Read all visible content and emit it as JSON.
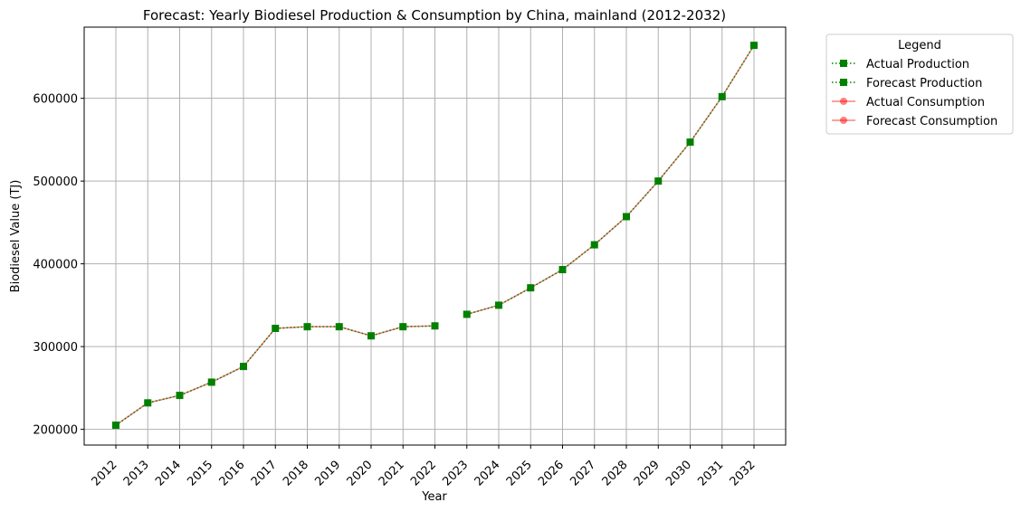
{
  "chart_data": {
    "type": "line",
    "title": "Forecast: Yearly Biodiesel Production & Consumption by China, mainland (2012-2032)",
    "xlabel": "Year",
    "ylabel": "Biodiesel Value (TJ)",
    "categories": [
      "2012",
      "2013",
      "2014",
      "2015",
      "2016",
      "2017",
      "2018",
      "2019",
      "2020",
      "2021",
      "2022",
      "2023",
      "2024",
      "2025",
      "2026",
      "2027",
      "2028",
      "2029",
      "2030",
      "2031",
      "2032"
    ],
    "ylim": [
      181000,
      686000
    ],
    "yticks": [
      200000,
      300000,
      400000,
      500000,
      600000
    ],
    "grid": true,
    "legend": {
      "title": "Legend",
      "placement": "outside-top-right"
    },
    "series": [
      {
        "name": "Actual Production",
        "color": "#008000",
        "marker": "square",
        "linestyle": "dotted",
        "x": [
          "2012",
          "2013",
          "2014",
          "2015",
          "2016",
          "2017",
          "2018",
          "2019",
          "2020",
          "2021",
          "2022"
        ],
        "values": [
          205000,
          232000,
          241000,
          257000,
          276000,
          322000,
          324000,
          324000,
          313000,
          324000,
          325000
        ]
      },
      {
        "name": "Forecast Production",
        "color": "#008000",
        "marker": "square",
        "linestyle": "dotted",
        "x": [
          "2023",
          "2024",
          "2025",
          "2026",
          "2027",
          "2028",
          "2029",
          "2030",
          "2031",
          "2032"
        ],
        "values": [
          339000,
          350000,
          371000,
          393000,
          423000,
          457000,
          500000,
          547000,
          602000,
          664000
        ]
      },
      {
        "name": "Actual Consumption",
        "color": "#ff0000",
        "marker": "circle",
        "linestyle": "solid",
        "alpha": 0.5,
        "x": [
          "2012",
          "2013",
          "2014",
          "2015",
          "2016",
          "2017",
          "2018",
          "2019",
          "2020",
          "2021",
          "2022"
        ],
        "values": [
          205000,
          232000,
          241000,
          257000,
          276000,
          322000,
          324000,
          324000,
          313000,
          324000,
          325000
        ]
      },
      {
        "name": "Forecast Consumption",
        "color": "#ff0000",
        "marker": "circle",
        "linestyle": "solid",
        "alpha": 0.5,
        "x": [
          "2023",
          "2024",
          "2025",
          "2026",
          "2027",
          "2028",
          "2029",
          "2030",
          "2031",
          "2032"
        ],
        "values": [
          339000,
          350000,
          371000,
          393000,
          423000,
          457000,
          500000,
          547000,
          602000,
          664000
        ]
      }
    ]
  }
}
